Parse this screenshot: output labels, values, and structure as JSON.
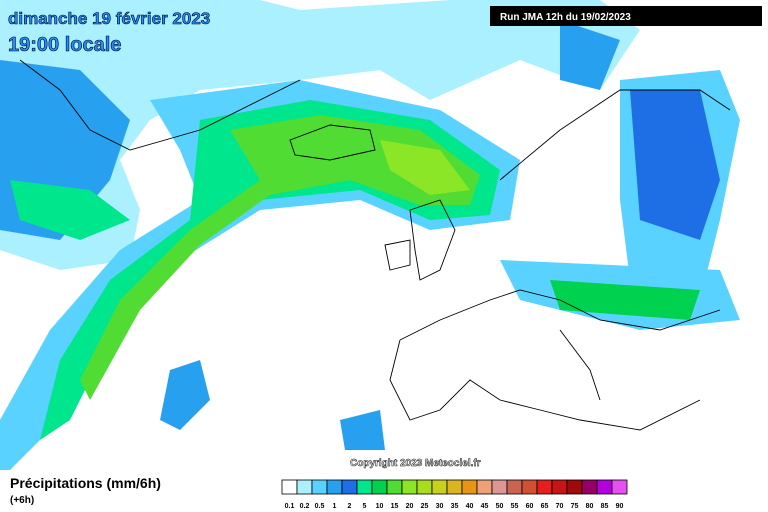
{
  "header": {
    "date": "dimanche 19 février 2023",
    "time": "19:00 locale",
    "run": "Run JMA 12h du 19/02/2023"
  },
  "footer": {
    "copyright": "Copyright 2023 Meteociel.fr"
  },
  "legend": {
    "title": "Précipitations (mm/6h)",
    "subtitle": "(+6h)",
    "items": [
      {
        "label": "0.1",
        "color": "#ffffff"
      },
      {
        "label": "0.2",
        "color": "#aaf0ff"
      },
      {
        "label": "0.5",
        "color": "#5ad2ff"
      },
      {
        "label": "1",
        "color": "#28a0f0"
      },
      {
        "label": "2",
        "color": "#1e6ee6"
      },
      {
        "label": "5",
        "color": "#00e68c"
      },
      {
        "label": "10",
        "color": "#00d250"
      },
      {
        "label": "15",
        "color": "#50dc32"
      },
      {
        "label": "20",
        "color": "#8ce628"
      },
      {
        "label": "25",
        "color": "#aadc1e"
      },
      {
        "label": "30",
        "color": "#c8d21e"
      },
      {
        "label": "35",
        "color": "#dcb41e"
      },
      {
        "label": "40",
        "color": "#e69614"
      },
      {
        "label": "45",
        "color": "#f0a078"
      },
      {
        "label": "50",
        "color": "#dc9696"
      },
      {
        "label": "55",
        "color": "#c86450"
      },
      {
        "label": "60",
        "color": "#d25032"
      },
      {
        "label": "65",
        "color": "#e61e1e"
      },
      {
        "label": "70",
        "color": "#c81414"
      },
      {
        "label": "75",
        "color": "#a00a0a"
      },
      {
        "label": "80",
        "color": "#960064"
      },
      {
        "label": "85",
        "color": "#b400dc"
      },
      {
        "label": "90",
        "color": "#e650f0"
      }
    ]
  }
}
